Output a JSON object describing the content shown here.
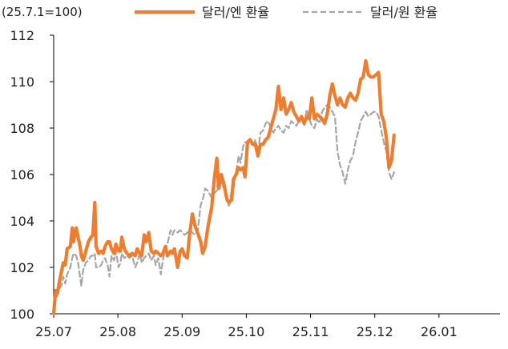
{
  "chart_data": {
    "type": "line",
    "unit_note": "(25.7.1=100)",
    "ylim": [
      100,
      112
    ],
    "y_ticks": [
      100,
      102,
      104,
      106,
      108,
      110,
      112
    ],
    "x_ticks": [
      {
        "label": "25.07",
        "x": 0
      },
      {
        "label": "25.08",
        "x": 1
      },
      {
        "label": "25.09",
        "x": 2
      },
      {
        "label": "25.10",
        "x": 3
      },
      {
        "label": "25.11",
        "x": 4
      },
      {
        "label": "25.12",
        "x": 5
      },
      {
        "label": "26.01",
        "x": 6
      }
    ],
    "xlim": [
      0,
      6.95
    ],
    "grid": false,
    "legend_position": "top-right",
    "series": [
      {
        "name": "달러/엔 환율",
        "color": "#ED7D31",
        "style": "solid",
        "points": [
          [
            0,
            100.0
          ],
          [
            0.03,
            101.0
          ],
          [
            0.06,
            100.9
          ],
          [
            0.09,
            101.4
          ],
          [
            0.12,
            101.8
          ],
          [
            0.15,
            102.2
          ],
          [
            0.18,
            102.1
          ],
          [
            0.21,
            102.8
          ],
          [
            0.26,
            102.9
          ],
          [
            0.29,
            103.7
          ],
          [
            0.31,
            103.1
          ],
          [
            0.35,
            103.7
          ],
          [
            0.38,
            103.3
          ],
          [
            0.41,
            102.9
          ],
          [
            0.43,
            102.5
          ],
          [
            0.46,
            102.3
          ],
          [
            0.5,
            102.7
          ],
          [
            0.54,
            103.1
          ],
          [
            0.58,
            103.3
          ],
          [
            0.61,
            103.4
          ],
          [
            0.64,
            104.8
          ],
          [
            0.66,
            102.9
          ],
          [
            0.7,
            102.6
          ],
          [
            0.74,
            102.7
          ],
          [
            0.77,
            102.6
          ],
          [
            0.8,
            102.9
          ],
          [
            0.84,
            103.1
          ],
          [
            0.87,
            103.1
          ],
          [
            0.9,
            102.8
          ],
          [
            0.94,
            102.6
          ],
          [
            0.97,
            103.0
          ],
          [
            1.01,
            102.7
          ],
          [
            1.04,
            102.7
          ],
          [
            1.06,
            103.3
          ],
          [
            1.1,
            102.8
          ],
          [
            1.14,
            102.6
          ],
          [
            1.18,
            102.5
          ],
          [
            1.22,
            102.6
          ],
          [
            1.27,
            102.5
          ],
          [
            1.3,
            102.8
          ],
          [
            1.34,
            102.6
          ],
          [
            1.37,
            102.5
          ],
          [
            1.41,
            103.4
          ],
          [
            1.44,
            103.1
          ],
          [
            1.48,
            103.5
          ],
          [
            1.52,
            102.7
          ],
          [
            1.56,
            102.6
          ],
          [
            1.59,
            102.7
          ],
          [
            1.63,
            102.6
          ],
          [
            1.67,
            102.5
          ],
          [
            1.7,
            102.6
          ],
          [
            1.74,
            102.9
          ],
          [
            1.77,
            102.5
          ],
          [
            1.82,
            102.7
          ],
          [
            1.85,
            102.6
          ],
          [
            1.88,
            102.8
          ],
          [
            1.93,
            102.0
          ],
          [
            1.97,
            102.7
          ],
          [
            2.0,
            102.8
          ],
          [
            2.04,
            102.5
          ],
          [
            2.08,
            102.4
          ],
          [
            2.12,
            103.5
          ],
          [
            2.16,
            104.3
          ],
          [
            2.2,
            103.8
          ],
          [
            2.24,
            103.5
          ],
          [
            2.29,
            103.1
          ],
          [
            2.32,
            102.6
          ],
          [
            2.36,
            102.9
          ],
          [
            2.4,
            103.7
          ],
          [
            2.46,
            104.6
          ],
          [
            2.5,
            105.8
          ],
          [
            2.54,
            106.7
          ],
          [
            2.57,
            105.4
          ],
          [
            2.61,
            106.0
          ],
          [
            2.65,
            105.6
          ],
          [
            2.7,
            104.9
          ],
          [
            2.73,
            104.8
          ],
          [
            2.77,
            104.9
          ],
          [
            2.8,
            105.8
          ],
          [
            2.84,
            106.0
          ],
          [
            2.88,
            106.3
          ],
          [
            2.91,
            106.2
          ],
          [
            2.95,
            106.3
          ],
          [
            2.98,
            105.9
          ],
          [
            3.02,
            107.4
          ],
          [
            3.06,
            107.5
          ],
          [
            3.1,
            107.3
          ],
          [
            3.14,
            107.3
          ],
          [
            3.18,
            106.8
          ],
          [
            3.22,
            107.3
          ],
          [
            3.26,
            107.3
          ],
          [
            3.3,
            107.5
          ],
          [
            3.34,
            107.6
          ],
          [
            3.38,
            108.0
          ],
          [
            3.42,
            108.4
          ],
          [
            3.46,
            108.8
          ],
          [
            3.5,
            109.8
          ],
          [
            3.54,
            108.8
          ],
          [
            3.58,
            109.3
          ],
          [
            3.62,
            108.6
          ],
          [
            3.66,
            108.8
          ],
          [
            3.7,
            109.1
          ],
          [
            3.74,
            108.7
          ],
          [
            3.78,
            108.5
          ],
          [
            3.82,
            108.3
          ],
          [
            3.86,
            108.5
          ],
          [
            3.9,
            108.2
          ],
          [
            3.94,
            108.5
          ],
          [
            3.98,
            108.4
          ],
          [
            4.02,
            109.3
          ],
          [
            4.06,
            108.4
          ],
          [
            4.1,
            108.6
          ],
          [
            4.14,
            108.5
          ],
          [
            4.18,
            108.4
          ],
          [
            4.22,
            108.2
          ],
          [
            4.26,
            108.6
          ],
          [
            4.3,
            109.4
          ],
          [
            4.34,
            109.9
          ],
          [
            4.38,
            109.4
          ],
          [
            4.42,
            109.0
          ],
          [
            4.46,
            109.3
          ],
          [
            4.5,
            109.0
          ],
          [
            4.54,
            108.9
          ],
          [
            4.58,
            109.3
          ],
          [
            4.62,
            109.5
          ],
          [
            4.66,
            109.3
          ],
          [
            4.7,
            109.2
          ],
          [
            4.74,
            109.5
          ],
          [
            4.78,
            110.1
          ],
          [
            4.82,
            110.2
          ],
          [
            4.86,
            110.9
          ],
          [
            4.9,
            110.3
          ],
          [
            4.94,
            110.2
          ],
          [
            4.98,
            110.2
          ],
          [
            5.02,
            110.3
          ],
          [
            5.06,
            110.4
          ],
          [
            5.1,
            108.6
          ],
          [
            5.14,
            108.3
          ],
          [
            5.18,
            107.6
          ],
          [
            5.22,
            106.3
          ],
          [
            5.26,
            106.6
          ],
          [
            5.3,
            107.7
          ]
        ]
      },
      {
        "name": "달러/원 환율",
        "color": "#A6A6A6",
        "style": "dashed",
        "points": [
          [
            0,
            100.0
          ],
          [
            0.03,
            100.6
          ],
          [
            0.06,
            100.8
          ],
          [
            0.09,
            101.1
          ],
          [
            0.12,
            101.2
          ],
          [
            0.15,
            101.6
          ],
          [
            0.18,
            101.3
          ],
          [
            0.21,
            101.7
          ],
          [
            0.26,
            102.0
          ],
          [
            0.29,
            102.4
          ],
          [
            0.31,
            102.6
          ],
          [
            0.35,
            102.5
          ],
          [
            0.38,
            102.2
          ],
          [
            0.41,
            101.6
          ],
          [
            0.43,
            101.2
          ],
          [
            0.46,
            101.9
          ],
          [
            0.5,
            102.2
          ],
          [
            0.54,
            102.3
          ],
          [
            0.58,
            102.5
          ],
          [
            0.61,
            102.5
          ],
          [
            0.64,
            102.6
          ],
          [
            0.66,
            102.0
          ],
          [
            0.7,
            102.0
          ],
          [
            0.74,
            102.1
          ],
          [
            0.77,
            102.3
          ],
          [
            0.8,
            102.4
          ],
          [
            0.84,
            102.1
          ],
          [
            0.87,
            101.6
          ],
          [
            0.9,
            102.5
          ],
          [
            0.94,
            102.3
          ],
          [
            0.97,
            102.7
          ],
          [
            1.01,
            102.0
          ],
          [
            1.04,
            102.2
          ],
          [
            1.06,
            102.6
          ],
          [
            1.1,
            102.4
          ],
          [
            1.14,
            102.5
          ],
          [
            1.18,
            102.4
          ],
          [
            1.22,
            102.5
          ],
          [
            1.27,
            102.0
          ],
          [
            1.3,
            102.2
          ],
          [
            1.34,
            102.6
          ],
          [
            1.37,
            102.2
          ],
          [
            1.41,
            102.4
          ],
          [
            1.44,
            102.5
          ],
          [
            1.48,
            102.6
          ],
          [
            1.52,
            102.3
          ],
          [
            1.56,
            102.5
          ],
          [
            1.59,
            102.1
          ],
          [
            1.63,
            102.4
          ],
          [
            1.67,
            101.7
          ],
          [
            1.7,
            102.3
          ],
          [
            1.74,
            102.8
          ],
          [
            1.77,
            103.0
          ],
          [
            1.82,
            103.6
          ],
          [
            1.85,
            103.4
          ],
          [
            1.88,
            103.6
          ],
          [
            1.93,
            103.5
          ],
          [
            1.97,
            103.6
          ],
          [
            2.0,
            103.5
          ],
          [
            2.04,
            103.4
          ],
          [
            2.08,
            103.5
          ],
          [
            2.12,
            103.6
          ],
          [
            2.16,
            103.5
          ],
          [
            2.2,
            103.4
          ],
          [
            2.24,
            103.5
          ],
          [
            2.29,
            104.7
          ],
          [
            2.32,
            104.9
          ],
          [
            2.36,
            105.4
          ],
          [
            2.4,
            105.3
          ],
          [
            2.46,
            105.0
          ],
          [
            2.5,
            105.2
          ],
          [
            2.54,
            105.3
          ],
          [
            2.57,
            106.1
          ],
          [
            2.61,
            105.7
          ],
          [
            2.65,
            105.4
          ],
          [
            2.7,
            105.0
          ],
          [
            2.73,
            104.6
          ],
          [
            2.77,
            105.3
          ],
          [
            2.8,
            105.4
          ],
          [
            2.84,
            106.1
          ],
          [
            2.88,
            106.8
          ],
          [
            2.91,
            106.5
          ],
          [
            2.95,
            107.2
          ],
          [
            2.98,
            107.4
          ],
          [
            3.02,
            107.3
          ],
          [
            3.06,
            107.5
          ],
          [
            3.1,
            107.2
          ],
          [
            3.14,
            107.5
          ],
          [
            3.18,
            107.0
          ],
          [
            3.22,
            107.8
          ],
          [
            3.26,
            107.9
          ],
          [
            3.3,
            108.2
          ],
          [
            3.34,
            108.3
          ],
          [
            3.38,
            108.0
          ],
          [
            3.42,
            107.8
          ],
          [
            3.46,
            108.0
          ],
          [
            3.5,
            108.1
          ],
          [
            3.54,
            107.9
          ],
          [
            3.58,
            107.8
          ],
          [
            3.62,
            108.1
          ],
          [
            3.66,
            108.0
          ],
          [
            3.7,
            108.3
          ],
          [
            3.74,
            108.2
          ],
          [
            3.78,
            108.1
          ],
          [
            3.82,
            108.3
          ],
          [
            3.86,
            108.4
          ],
          [
            3.9,
            108.1
          ],
          [
            3.94,
            108.8
          ],
          [
            3.98,
            108.4
          ],
          [
            4.02,
            108.1
          ],
          [
            4.06,
            108.0
          ],
          [
            4.1,
            108.4
          ],
          [
            4.14,
            108.2
          ],
          [
            4.18,
            108.7
          ],
          [
            4.22,
            108.9
          ],
          [
            4.26,
            109.0
          ],
          [
            4.3,
            108.9
          ],
          [
            4.34,
            108.7
          ],
          [
            4.38,
            108.5
          ],
          [
            4.42,
            107.0
          ],
          [
            4.46,
            106.4
          ],
          [
            4.5,
            106.1
          ],
          [
            4.54,
            105.6
          ],
          [
            4.58,
            106.2
          ],
          [
            4.62,
            106.6
          ],
          [
            4.66,
            106.8
          ],
          [
            4.7,
            107.4
          ],
          [
            4.74,
            107.8
          ],
          [
            4.78,
            108.3
          ],
          [
            4.82,
            108.5
          ],
          [
            4.86,
            108.7
          ],
          [
            4.9,
            108.5
          ],
          [
            4.94,
            108.6
          ],
          [
            4.98,
            108.7
          ],
          [
            5.02,
            108.7
          ],
          [
            5.06,
            108.5
          ],
          [
            5.1,
            107.9
          ],
          [
            5.14,
            107.4
          ],
          [
            5.18,
            107.0
          ],
          [
            5.22,
            106.1
          ],
          [
            5.26,
            105.8
          ],
          [
            5.3,
            106.1
          ]
        ]
      }
    ]
  }
}
